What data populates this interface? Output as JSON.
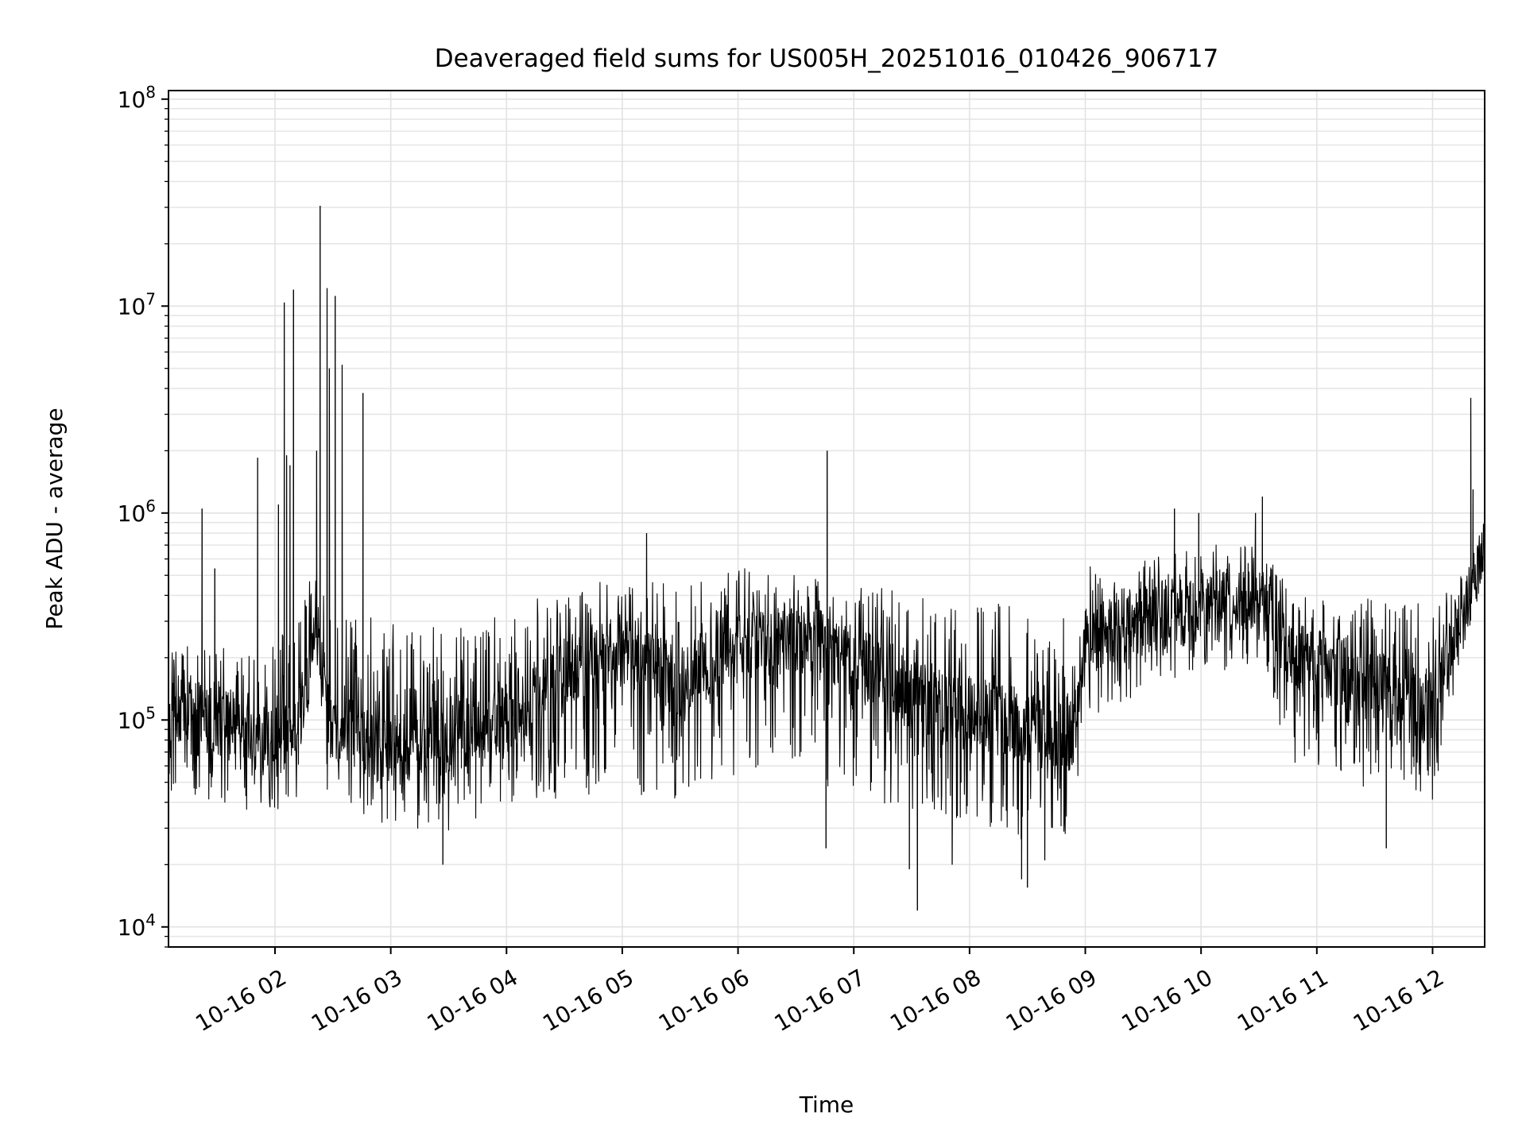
{
  "chart_data": {
    "type": "line",
    "title": "Deaveraged field sums for US005H_20251016_010426_906717",
    "xlabel": "Time",
    "ylabel": "Peak ADU - average",
    "yscale": "log",
    "ylim": [
      8000,
      110000000
    ],
    "xlim_hours": [
      1.08,
      12.45
    ],
    "grid": true,
    "line_color": "#000000",
    "x_ticks": [
      {
        "label": "10-16 02",
        "hour": 2
      },
      {
        "label": "10-16 03",
        "hour": 3
      },
      {
        "label": "10-16 04",
        "hour": 4
      },
      {
        "label": "10-16 05",
        "hour": 5
      },
      {
        "label": "10-16 06",
        "hour": 6
      },
      {
        "label": "10-16 07",
        "hour": 7
      },
      {
        "label": "10-16 08",
        "hour": 8
      },
      {
        "label": "10-16 09",
        "hour": 9
      },
      {
        "label": "10-16 10",
        "hour": 10
      },
      {
        "label": "10-16 11",
        "hour": 11
      },
      {
        "label": "10-16 12",
        "hour": 12
      }
    ],
    "y_ticks": [
      {
        "base": "10",
        "exp": "4",
        "value": 10000
      },
      {
        "base": "10",
        "exp": "5",
        "value": 100000
      },
      {
        "base": "10",
        "exp": "6",
        "value": 1000000
      },
      {
        "base": "10",
        "exp": "7",
        "value": 10000000
      },
      {
        "base": "10",
        "exp": "8",
        "value": 100000000
      }
    ],
    "envelope": [
      {
        "h": 1.08,
        "base": 110000,
        "low": 45000,
        "high": 250000
      },
      {
        "h": 1.5,
        "base": 100000,
        "low": 40000,
        "high": 230000
      },
      {
        "h": 1.9,
        "base": 80000,
        "low": 35000,
        "high": 200000
      },
      {
        "h": 2.2,
        "base": 90000,
        "low": 40000,
        "high": 400000
      },
      {
        "h": 2.35,
        "base": 300000,
        "low": 220000,
        "high": 550000
      },
      {
        "h": 2.45,
        "base": 100000,
        "low": 40000,
        "high": 350000
      },
      {
        "h": 3.0,
        "base": 70000,
        "low": 30000,
        "high": 300000
      },
      {
        "h": 3.5,
        "base": 80000,
        "low": 28000,
        "high": 280000
      },
      {
        "h": 4.0,
        "base": 100000,
        "low": 35000,
        "high": 350000
      },
      {
        "h": 4.5,
        "base": 170000,
        "low": 40000,
        "high": 450000
      },
      {
        "h": 5.0,
        "base": 220000,
        "low": 45000,
        "high": 480000
      },
      {
        "h": 5.5,
        "base": 150000,
        "low": 40000,
        "high": 450000
      },
      {
        "h": 6.0,
        "base": 220000,
        "low": 40000,
        "high": 550000
      },
      {
        "h": 6.5,
        "base": 250000,
        "low": 50000,
        "high": 520000
      },
      {
        "h": 7.0,
        "base": 200000,
        "low": 40000,
        "high": 480000
      },
      {
        "h": 7.5,
        "base": 130000,
        "low": 35000,
        "high": 400000
      },
      {
        "h": 8.0,
        "base": 110000,
        "low": 30000,
        "high": 380000
      },
      {
        "h": 8.5,
        "base": 90000,
        "low": 25000,
        "high": 350000
      },
      {
        "h": 8.9,
        "base": 80000,
        "low": 25000,
        "high": 300000
      },
      {
        "h": 9.0,
        "base": 250000,
        "low": 100000,
        "high": 550000
      },
      {
        "h": 9.5,
        "base": 300000,
        "low": 130000,
        "high": 600000
      },
      {
        "h": 10.0,
        "base": 350000,
        "low": 150000,
        "high": 700000
      },
      {
        "h": 10.5,
        "base": 380000,
        "low": 170000,
        "high": 750000
      },
      {
        "h": 10.8,
        "base": 200000,
        "low": 60000,
        "high": 400000
      },
      {
        "h": 11.5,
        "base": 150000,
        "low": 40000,
        "high": 400000
      },
      {
        "h": 12.0,
        "base": 120000,
        "low": 40000,
        "high": 380000
      },
      {
        "h": 12.25,
        "base": 300000,
        "low": 200000,
        "high": 500000
      },
      {
        "h": 12.45,
        "base": 700000,
        "low": 500000,
        "high": 900000
      }
    ],
    "spikes": [
      {
        "h": 1.37,
        "value": 1050000
      },
      {
        "h": 1.48,
        "value": 540000
      },
      {
        "h": 1.85,
        "value": 1850000
      },
      {
        "h": 2.03,
        "value": 1100000
      },
      {
        "h": 2.08,
        "value": 10400000
      },
      {
        "h": 2.1,
        "value": 1900000
      },
      {
        "h": 2.13,
        "value": 1700000
      },
      {
        "h": 2.16,
        "value": 12000000
      },
      {
        "h": 2.36,
        "value": 2000000
      },
      {
        "h": 2.39,
        "value": 30500000
      },
      {
        "h": 2.45,
        "value": 12200000
      },
      {
        "h": 2.47,
        "value": 5000000
      },
      {
        "h": 2.52,
        "value": 11200000
      },
      {
        "h": 2.58,
        "value": 5200000
      },
      {
        "h": 2.76,
        "value": 3800000
      },
      {
        "h": 5.21,
        "value": 800000
      },
      {
        "h": 6.77,
        "value": 2000000
      },
      {
        "h": 9.77,
        "value": 1050000
      },
      {
        "h": 9.98,
        "value": 1000000
      },
      {
        "h": 10.47,
        "value": 1000000
      },
      {
        "h": 10.53,
        "value": 1200000
      },
      {
        "h": 12.33,
        "value": 3600000
      },
      {
        "h": 12.35,
        "value": 1300000
      }
    ],
    "dips": [
      {
        "h": 3.45,
        "value": 20000
      },
      {
        "h": 6.76,
        "value": 24000
      },
      {
        "h": 7.48,
        "value": 19000
      },
      {
        "h": 7.55,
        "value": 12000
      },
      {
        "h": 7.85,
        "value": 20000
      },
      {
        "h": 8.45,
        "value": 17000
      },
      {
        "h": 8.5,
        "value": 15500
      },
      {
        "h": 8.65,
        "value": 21000
      },
      {
        "h": 11.6,
        "value": 24000
      }
    ]
  }
}
